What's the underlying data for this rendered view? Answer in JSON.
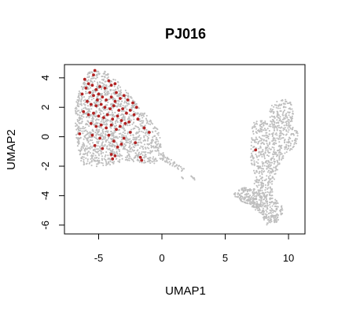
{
  "chart_data": {
    "type": "scatter",
    "title": "PJ016",
    "xlabel": "UMAP1",
    "ylabel": "UMAP2",
    "xlim": [
      -7.7,
      11.3
    ],
    "ylim": [
      -6.6,
      4.9
    ],
    "x_ticks": [
      -5,
      0,
      5,
      10
    ],
    "y_ticks": [
      -6,
      -4,
      -2,
      0,
      2,
      4
    ],
    "x_tick_labels": [
      "-5",
      "0",
      "5",
      "10"
    ],
    "y_tick_labels": [
      "-6",
      "-4",
      "-2",
      "0",
      "2",
      "4"
    ],
    "grid": false,
    "legend": "none",
    "colors": {
      "background_points": "#bebebe",
      "highlight_points": "#b22222"
    },
    "series": [
      {
        "color": "#bebebe",
        "regions": [
          {
            "shape": "polygon",
            "n": 1500,
            "points": [
              [
                -5.8,
                4.4
              ],
              [
                -4.6,
                4.5
              ],
              [
                -3.4,
                3.7
              ],
              [
                -2.4,
                2.7
              ],
              [
                -1.6,
                1.8
              ],
              [
                -0.7,
                1.0
              ],
              [
                -0.2,
                0.3
              ],
              [
                0.2,
                -1.5
              ],
              [
                -0.8,
                -1.9
              ],
              [
                -2.8,
                -1.6
              ],
              [
                -4.8,
                -2.1
              ],
              [
                -6.3,
                -1.9
              ],
              [
                -6.8,
                -0.3
              ],
              [
                -6.9,
                1.9
              ],
              [
                -6.6,
                3.0
              ]
            ]
          },
          {
            "shape": "polygon",
            "n": 40,
            "points": [
              [
                0.1,
                -1.2
              ],
              [
                1.9,
                -2.2
              ],
              [
                1.7,
                -2.4
              ],
              [
                0.0,
                -1.6
              ]
            ]
          },
          {
            "shape": "polygon",
            "n": 8,
            "points": [
              [
                2.3,
                -2.6
              ],
              [
                2.7,
                -2.9
              ],
              [
                2.6,
                -3.0
              ],
              [
                2.2,
                -2.7
              ]
            ]
          },
          {
            "shape": "polygon",
            "n": 4,
            "points": [
              [
                1.6,
                -2.7
              ],
              [
                1.8,
                -2.8
              ],
              [
                1.7,
                -2.9
              ],
              [
                1.5,
                -2.8
              ]
            ]
          },
          {
            "shape": "polygon",
            "n": 700,
            "points": [
              [
                7.2,
                1.0
              ],
              [
                8.3,
                1.2
              ],
              [
                8.8,
                2.4
              ],
              [
                9.6,
                2.6
              ],
              [
                10.2,
                2.3
              ],
              [
                10.4,
                1.5
              ],
              [
                10.2,
                0.8
              ],
              [
                10.8,
                0.3
              ],
              [
                10.6,
                -0.6
              ],
              [
                9.8,
                -1.2
              ],
              [
                9.2,
                -2.2
              ],
              [
                8.8,
                -3.1
              ],
              [
                8.7,
                -4.3
              ],
              [
                8.0,
                -4.1
              ],
              [
                7.3,
                -3.2
              ],
              [
                7.0,
                -1.4
              ],
              [
                7.0,
                -0.2
              ]
            ]
          },
          {
            "shape": "polygon",
            "n": 380,
            "points": [
              [
                5.6,
                -3.9
              ],
              [
                6.5,
                -3.4
              ],
              [
                7.6,
                -3.6
              ],
              [
                8.6,
                -4.1
              ],
              [
                9.4,
                -4.5
              ],
              [
                9.6,
                -5.1
              ],
              [
                9.1,
                -5.8
              ],
              [
                8.3,
                -6.0
              ],
              [
                7.7,
                -5.2
              ],
              [
                6.9,
                -4.6
              ],
              [
                6.0,
                -4.3
              ]
            ]
          }
        ]
      },
      {
        "color": "#b22222",
        "points": [
          [
            -5.3,
            4.5
          ],
          [
            -5.4,
            4.2
          ],
          [
            -6.1,
            3.9
          ],
          [
            -5.8,
            3.6
          ],
          [
            -6.0,
            3.3
          ],
          [
            -5.5,
            3.5
          ],
          [
            -5.2,
            3.2
          ],
          [
            -4.9,
            3.4
          ],
          [
            -4.5,
            3.3
          ],
          [
            -4.0,
            3.5
          ],
          [
            -3.7,
            3.6
          ],
          [
            -4.2,
            3.8
          ],
          [
            -5.7,
            3.0
          ],
          [
            -5.4,
            2.8
          ],
          [
            -5.0,
            2.9
          ],
          [
            -4.7,
            2.7
          ],
          [
            -4.4,
            2.5
          ],
          [
            -4.0,
            2.7
          ],
          [
            -3.7,
            2.4
          ],
          [
            -3.3,
            2.6
          ],
          [
            -3.0,
            2.8
          ],
          [
            -2.7,
            2.5
          ],
          [
            -2.3,
            2.3
          ],
          [
            -2.0,
            2.0
          ],
          [
            -5.9,
            2.4
          ],
          [
            -5.6,
            2.2
          ],
          [
            -5.2,
            2.1
          ],
          [
            -4.8,
            2.2
          ],
          [
            -4.5,
            2.0
          ],
          [
            -4.1,
            1.9
          ],
          [
            -3.8,
            2.1
          ],
          [
            -3.4,
            1.8
          ],
          [
            -3.1,
            1.9
          ],
          [
            -2.8,
            1.6
          ],
          [
            -2.5,
            1.8
          ],
          [
            -2.2,
            1.5
          ],
          [
            -1.9,
            1.2
          ],
          [
            -6.2,
            1.7
          ],
          [
            -5.8,
            1.5
          ],
          [
            -5.4,
            1.6
          ],
          [
            -5.0,
            1.4
          ],
          [
            -4.6,
            1.3
          ],
          [
            -4.3,
            1.5
          ],
          [
            -3.9,
            1.2
          ],
          [
            -3.5,
            1.4
          ],
          [
            -3.2,
            1.1
          ],
          [
            -2.9,
            0.9
          ],
          [
            -2.6,
            1.0
          ],
          [
            -5.6,
            0.9
          ],
          [
            -5.2,
            0.7
          ],
          [
            -4.8,
            0.8
          ],
          [
            -4.4,
            0.6
          ],
          [
            -4.0,
            0.8
          ],
          [
            -3.6,
            0.5
          ],
          [
            -3.3,
            0.7
          ],
          [
            -1.4,
            0.6
          ],
          [
            -1.0,
            0.3
          ],
          [
            -6.5,
            0.2
          ],
          [
            -5.5,
            0.1
          ],
          [
            -4.9,
            -0.1
          ],
          [
            -4.2,
            0.1
          ],
          [
            -3.8,
            -0.3
          ],
          [
            -3.0,
            -0.1
          ],
          [
            -2.5,
            0.3
          ],
          [
            -5.3,
            -0.6
          ],
          [
            -4.7,
            -0.8
          ],
          [
            -3.5,
            -0.7
          ],
          [
            -3.2,
            -0.5
          ],
          [
            -2.1,
            -0.4
          ],
          [
            -4.0,
            -1.2
          ],
          [
            -3.7,
            -1.3
          ],
          [
            -3.9,
            -1.5
          ],
          [
            -1.7,
            -1.4
          ],
          [
            -1.6,
            -1.6
          ],
          [
            -6.3,
            2.9
          ],
          [
            -3.6,
            3.0
          ],
          [
            -5.1,
            2.5
          ],
          [
            7.4,
            -0.9
          ]
        ]
      }
    ]
  }
}
